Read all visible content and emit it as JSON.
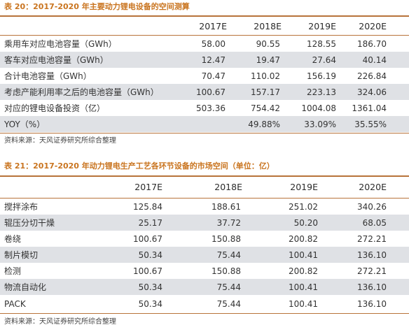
{
  "table1": {
    "title": "表 20：2017-2020 年主要动力锂电设备的空间测算",
    "headers": [
      "2017E",
      "2018E",
      "2019E",
      "2020E"
    ],
    "rows": [
      {
        "label": "乘用车对应电池容量（GWh）",
        "values": [
          "58.00",
          "90.55",
          "128.55",
          "186.70"
        ]
      },
      {
        "label": "客车对应电池容量（GWh）",
        "values": [
          "12.47",
          "19.47",
          "27.64",
          "40.14"
        ]
      },
      {
        "label": "合计电池容量（GWh）",
        "values": [
          "70.47",
          "110.02",
          "156.19",
          "226.84"
        ]
      },
      {
        "label": "考虑产能利用率之后的电池容量（GWh）",
        "values": [
          "100.67",
          "157.17",
          "223.13",
          "324.06"
        ]
      },
      {
        "label": "对应的锂电设备投资（亿）",
        "values": [
          "503.36",
          "754.42",
          "1004.08",
          "1361.04"
        ]
      },
      {
        "label": "YOY（%）",
        "values": [
          "",
          "49.88%",
          "33.09%",
          "35.55%"
        ]
      }
    ],
    "source": "资料来源：天风证券研究所综合整理"
  },
  "table2": {
    "title": "表 21：2017-2020 年动力锂电生产工艺各环节设备的市场空间（单位：亿）",
    "headers": [
      "2017E",
      "2018E",
      "2019E",
      "2020E"
    ],
    "rows": [
      {
        "label": "搅拌涂布",
        "values": [
          "125.84",
          "188.61",
          "251.02",
          "340.26"
        ]
      },
      {
        "label": "辊压分切干燥",
        "values": [
          "25.17",
          "37.72",
          "50.20",
          "68.05"
        ]
      },
      {
        "label": "卷绕",
        "values": [
          "100.67",
          "150.88",
          "200.82",
          "272.21"
        ]
      },
      {
        "label": "制片模切",
        "values": [
          "50.34",
          "75.44",
          "100.41",
          "136.10"
        ]
      },
      {
        "label": "检测",
        "values": [
          "100.67",
          "150.88",
          "200.82",
          "272.21"
        ]
      },
      {
        "label": "物流自动化",
        "values": [
          "50.34",
          "75.44",
          "100.41",
          "136.10"
        ]
      },
      {
        "label": "PACK",
        "values": [
          "50.34",
          "75.44",
          "100.41",
          "136.10"
        ]
      }
    ],
    "source": "资料来源：天风证券研究所综合整理"
  }
}
